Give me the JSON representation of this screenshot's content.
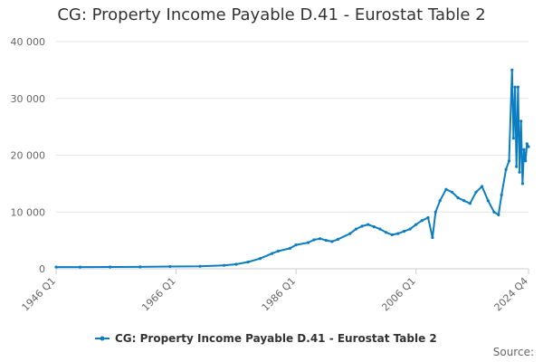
{
  "chart_data": {
    "type": "line",
    "title": "CG: Property Income Payable D.41 - Eurostat Table 2",
    "xlabel": "",
    "ylabel": "",
    "x_tick_labels": [
      "1946 Q1",
      "1966 Q1",
      "1986 Q1",
      "2006 Q1",
      "2024 Q4"
    ],
    "y_tick_labels": [
      "0",
      "10 000",
      "20 000",
      "30 000",
      "40 000"
    ],
    "ylim": [
      0,
      40000
    ],
    "grid": true,
    "legend_position": "bottom",
    "series": [
      {
        "name": "CG: Property Income Payable D.41 - Eurostat Table 2",
        "color": "#0b7dc0",
        "points": [
          [
            "1946 Q1",
            300
          ],
          [
            "1950 Q1",
            300
          ],
          [
            "1955 Q1",
            320
          ],
          [
            "1960 Q1",
            340
          ],
          [
            "1965 Q1",
            400
          ],
          [
            "1970 Q1",
            450
          ],
          [
            "1974 Q1",
            600
          ],
          [
            "1976 Q1",
            800
          ],
          [
            "1978 Q1",
            1200
          ],
          [
            "1980 Q1",
            1800
          ],
          [
            "1982 Q1",
            2700
          ],
          [
            "1983 Q1",
            3100
          ],
          [
            "1985 Q1",
            3600
          ],
          [
            "1986 Q1",
            4200
          ],
          [
            "1988 Q1",
            4600
          ],
          [
            "1989 Q1",
            5100
          ],
          [
            "1990 Q1",
            5300
          ],
          [
            "1991 Q1",
            5000
          ],
          [
            "1992 Q1",
            4800
          ],
          [
            "1993 Q1",
            5200
          ],
          [
            "1995 Q1",
            6200
          ],
          [
            "1996 Q1",
            7000
          ],
          [
            "1997 Q1",
            7500
          ],
          [
            "1998 Q1",
            7800
          ],
          [
            "1999 Q1",
            7400
          ],
          [
            "2000 Q1",
            7000
          ],
          [
            "2001 Q1",
            6400
          ],
          [
            "2002 Q1",
            6000
          ],
          [
            "2003 Q1",
            6200
          ],
          [
            "2004 Q1",
            6600
          ],
          [
            "2005 Q1",
            7000
          ],
          [
            "2006 Q1",
            7800
          ],
          [
            "2007 Q1",
            8500
          ],
          [
            "2008 Q1",
            9000
          ],
          [
            "2008 Q4",
            5500
          ],
          [
            "2009 Q2",
            10000
          ],
          [
            "2010 Q1",
            12000
          ],
          [
            "2011 Q1",
            14000
          ],
          [
            "2012 Q1",
            13500
          ],
          [
            "2013 Q1",
            12500
          ],
          [
            "2014 Q1",
            12000
          ],
          [
            "2015 Q1",
            11500
          ],
          [
            "2016 Q1",
            13500
          ],
          [
            "2017 Q1",
            14500
          ],
          [
            "2018 Q1",
            12000
          ],
          [
            "2019 Q1",
            10000
          ],
          [
            "2019 Q4",
            9500
          ],
          [
            "2020 Q2",
            13000
          ],
          [
            "2021 Q1",
            17500
          ],
          [
            "2021 Q3",
            19000
          ],
          [
            "2022 Q1",
            35000
          ],
          [
            "2022 Q2",
            23000
          ],
          [
            "2022 Q3",
            32000
          ],
          [
            "2022 Q4",
            18000
          ],
          [
            "2023 Q1",
            32000
          ],
          [
            "2023 Q2",
            17000
          ],
          [
            "2023 Q3",
            26000
          ],
          [
            "2023 Q4",
            15000
          ],
          [
            "2024 Q1",
            21000
          ],
          [
            "2024 Q2",
            19000
          ],
          [
            "2024 Q3",
            22000
          ],
          [
            "2024 Q4",
            21500
          ]
        ]
      }
    ]
  },
  "source_label": "Source:"
}
